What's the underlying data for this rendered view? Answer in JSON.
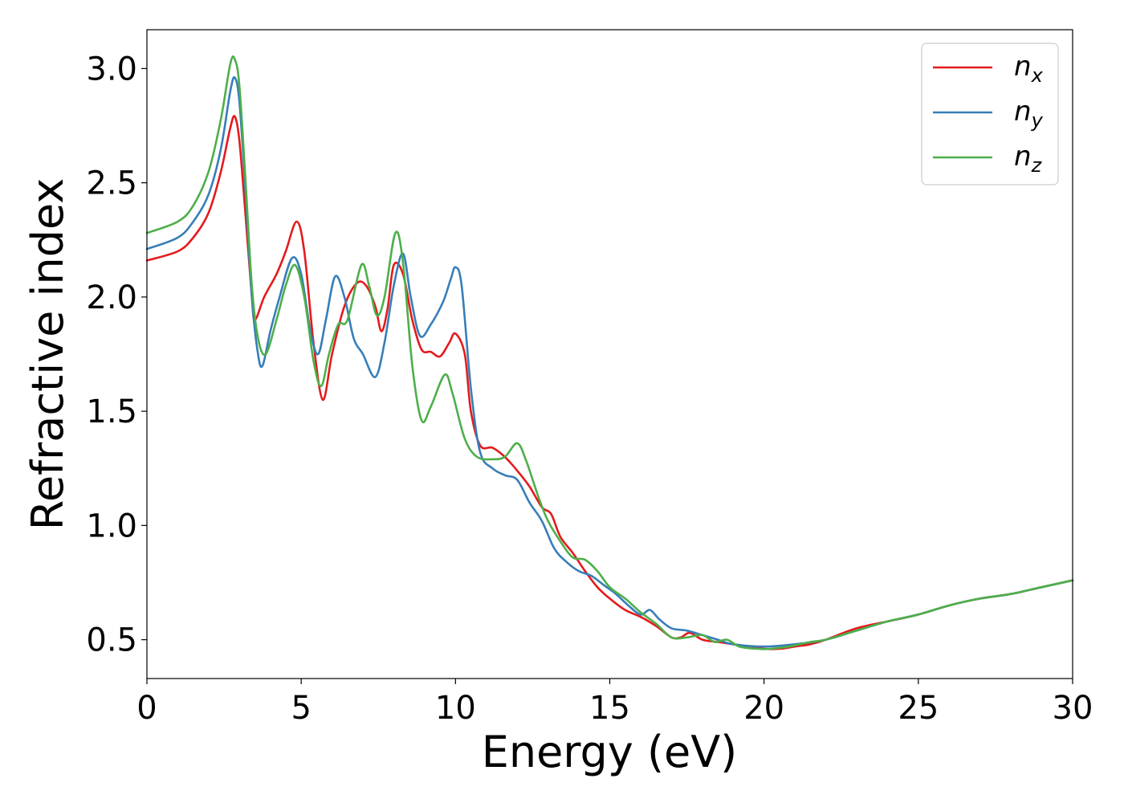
{
  "chart_data": {
    "type": "line",
    "xlabel": "Energy (eV)",
    "ylabel": "Refractive index",
    "xlim": [
      0,
      30
    ],
    "ylim": [
      0.33,
      3.17
    ],
    "xticks": [
      0,
      5,
      10,
      15,
      20,
      25,
      30
    ],
    "xtick_labels": [
      "0",
      "5",
      "10",
      "15",
      "20",
      "25",
      "30"
    ],
    "yticks": [
      0.5,
      1.0,
      1.5,
      2.0,
      2.5,
      3.0
    ],
    "ytick_labels": [
      "0.5",
      "1.0",
      "1.5",
      "2.0",
      "2.5",
      "3.0"
    ],
    "grid": false,
    "legend_position": "top-right",
    "series": [
      {
        "name": "n",
        "subscript": "x",
        "color": "#e41a1c",
        "points": [
          [
            0,
            2.16
          ],
          [
            1,
            2.2
          ],
          [
            1.5,
            2.26
          ],
          [
            2,
            2.37
          ],
          [
            2.4,
            2.55
          ],
          [
            2.7,
            2.74
          ],
          [
            2.85,
            2.79
          ],
          [
            3.0,
            2.68
          ],
          [
            3.2,
            2.35
          ],
          [
            3.4,
            2.0
          ],
          [
            3.5,
            1.9
          ],
          [
            3.8,
            2.0
          ],
          [
            4.2,
            2.1
          ],
          [
            4.5,
            2.2
          ],
          [
            4.85,
            2.33
          ],
          [
            5.1,
            2.2
          ],
          [
            5.4,
            1.8
          ],
          [
            5.7,
            1.55
          ],
          [
            6.0,
            1.75
          ],
          [
            6.4,
            1.96
          ],
          [
            6.8,
            2.06
          ],
          [
            7.1,
            2.05
          ],
          [
            7.4,
            1.96
          ],
          [
            7.6,
            1.85
          ],
          [
            7.8,
            1.95
          ],
          [
            8.0,
            2.14
          ],
          [
            8.3,
            2.1
          ],
          [
            8.6,
            1.9
          ],
          [
            8.9,
            1.77
          ],
          [
            9.2,
            1.76
          ],
          [
            9.5,
            1.74
          ],
          [
            9.8,
            1.8
          ],
          [
            10.0,
            1.84
          ],
          [
            10.3,
            1.75
          ],
          [
            10.5,
            1.5
          ],
          [
            10.8,
            1.35
          ],
          [
            11.2,
            1.34
          ],
          [
            11.6,
            1.3
          ],
          [
            12.0,
            1.24
          ],
          [
            12.4,
            1.17
          ],
          [
            12.8,
            1.08
          ],
          [
            13.1,
            1.05
          ],
          [
            13.4,
            0.95
          ],
          [
            13.8,
            0.88
          ],
          [
            14.2,
            0.8
          ],
          [
            14.6,
            0.73
          ],
          [
            15.0,
            0.68
          ],
          [
            15.5,
            0.63
          ],
          [
            16.0,
            0.6
          ],
          [
            16.5,
            0.56
          ],
          [
            17.0,
            0.51
          ],
          [
            17.3,
            0.51
          ],
          [
            17.6,
            0.53
          ],
          [
            18.0,
            0.5
          ],
          [
            18.5,
            0.49
          ],
          [
            19.0,
            0.48
          ],
          [
            19.5,
            0.47
          ],
          [
            20.0,
            0.46
          ],
          [
            20.5,
            0.46
          ],
          [
            21.0,
            0.47
          ],
          [
            21.5,
            0.48
          ],
          [
            22.0,
            0.5
          ],
          [
            23.0,
            0.55
          ],
          [
            24.0,
            0.58
          ],
          [
            25.0,
            0.61
          ],
          [
            26.0,
            0.65
          ],
          [
            27.0,
            0.68
          ],
          [
            28.0,
            0.7
          ],
          [
            29.0,
            0.73
          ],
          [
            30.0,
            0.76
          ]
        ]
      },
      {
        "name": "n",
        "subscript": "y",
        "color": "#377eb8",
        "points": [
          [
            0,
            2.21
          ],
          [
            1,
            2.26
          ],
          [
            1.5,
            2.33
          ],
          [
            2,
            2.45
          ],
          [
            2.4,
            2.65
          ],
          [
            2.7,
            2.9
          ],
          [
            2.85,
            2.96
          ],
          [
            3.0,
            2.85
          ],
          [
            3.2,
            2.45
          ],
          [
            3.4,
            2.0
          ],
          [
            3.6,
            1.75
          ],
          [
            3.75,
            1.7
          ],
          [
            4.0,
            1.85
          ],
          [
            4.3,
            2.0
          ],
          [
            4.7,
            2.17
          ],
          [
            5.0,
            2.1
          ],
          [
            5.3,
            1.85
          ],
          [
            5.55,
            1.75
          ],
          [
            5.8,
            1.9
          ],
          [
            6.1,
            2.09
          ],
          [
            6.4,
            2.0
          ],
          [
            6.7,
            1.82
          ],
          [
            7.0,
            1.75
          ],
          [
            7.4,
            1.65
          ],
          [
            7.7,
            1.8
          ],
          [
            8.0,
            2.05
          ],
          [
            8.3,
            2.19
          ],
          [
            8.55,
            2.0
          ],
          [
            8.85,
            1.83
          ],
          [
            9.2,
            1.88
          ],
          [
            9.6,
            1.98
          ],
          [
            9.85,
            2.08
          ],
          [
            10.0,
            2.13
          ],
          [
            10.2,
            2.05
          ],
          [
            10.5,
            1.6
          ],
          [
            10.8,
            1.32
          ],
          [
            11.2,
            1.25
          ],
          [
            11.6,
            1.22
          ],
          [
            12.0,
            1.2
          ],
          [
            12.4,
            1.1
          ],
          [
            12.8,
            1.02
          ],
          [
            13.2,
            0.9
          ],
          [
            13.6,
            0.84
          ],
          [
            14.0,
            0.8
          ],
          [
            14.4,
            0.78
          ],
          [
            14.8,
            0.74
          ],
          [
            15.2,
            0.7
          ],
          [
            15.6,
            0.65
          ],
          [
            16.0,
            0.61
          ],
          [
            16.3,
            0.63
          ],
          [
            16.6,
            0.59
          ],
          [
            17.0,
            0.55
          ],
          [
            17.5,
            0.54
          ],
          [
            18.0,
            0.52
          ],
          [
            18.5,
            0.5
          ],
          [
            19.0,
            0.48
          ],
          [
            20.0,
            0.47
          ],
          [
            21.0,
            0.48
          ],
          [
            22.0,
            0.5
          ],
          [
            23.0,
            0.54
          ],
          [
            24.0,
            0.58
          ],
          [
            25.0,
            0.61
          ],
          [
            26.0,
            0.65
          ],
          [
            27.0,
            0.68
          ],
          [
            28.0,
            0.7
          ],
          [
            29.0,
            0.73
          ],
          [
            30.0,
            0.76
          ]
        ]
      },
      {
        "name": "n",
        "subscript": "z",
        "color": "#4daf4a",
        "points": [
          [
            0,
            2.28
          ],
          [
            1,
            2.33
          ],
          [
            1.5,
            2.4
          ],
          [
            2,
            2.55
          ],
          [
            2.4,
            2.78
          ],
          [
            2.7,
            3.02
          ],
          [
            2.85,
            3.04
          ],
          [
            3.0,
            2.92
          ],
          [
            3.2,
            2.5
          ],
          [
            3.4,
            2.05
          ],
          [
            3.6,
            1.82
          ],
          [
            3.85,
            1.75
          ],
          [
            4.2,
            1.9
          ],
          [
            4.5,
            2.05
          ],
          [
            4.8,
            2.14
          ],
          [
            5.1,
            2.0
          ],
          [
            5.4,
            1.72
          ],
          [
            5.65,
            1.61
          ],
          [
            5.9,
            1.75
          ],
          [
            6.2,
            1.88
          ],
          [
            6.5,
            1.9
          ],
          [
            6.95,
            2.14
          ],
          [
            7.2,
            2.05
          ],
          [
            7.45,
            1.92
          ],
          [
            7.7,
            2.0
          ],
          [
            8.05,
            2.28
          ],
          [
            8.3,
            2.15
          ],
          [
            8.6,
            1.7
          ],
          [
            8.9,
            1.46
          ],
          [
            9.2,
            1.52
          ],
          [
            9.65,
            1.66
          ],
          [
            9.9,
            1.58
          ],
          [
            10.3,
            1.38
          ],
          [
            10.7,
            1.3
          ],
          [
            11.2,
            1.29
          ],
          [
            11.6,
            1.3
          ],
          [
            12.0,
            1.36
          ],
          [
            12.3,
            1.28
          ],
          [
            12.7,
            1.12
          ],
          [
            13.0,
            1.02
          ],
          [
            13.4,
            0.93
          ],
          [
            13.8,
            0.86
          ],
          [
            14.2,
            0.85
          ],
          [
            14.6,
            0.8
          ],
          [
            15.0,
            0.73
          ],
          [
            15.5,
            0.68
          ],
          [
            16.0,
            0.62
          ],
          [
            16.5,
            0.57
          ],
          [
            17.0,
            0.51
          ],
          [
            17.5,
            0.51
          ],
          [
            18.0,
            0.52
          ],
          [
            18.4,
            0.49
          ],
          [
            18.8,
            0.5
          ],
          [
            19.2,
            0.47
          ],
          [
            19.8,
            0.46
          ],
          [
            20.2,
            0.46
          ],
          [
            20.8,
            0.47
          ],
          [
            21.5,
            0.49
          ],
          [
            22.0,
            0.5
          ],
          [
            23.0,
            0.54
          ],
          [
            24.0,
            0.58
          ],
          [
            25.0,
            0.61
          ],
          [
            26.0,
            0.65
          ],
          [
            27.0,
            0.68
          ],
          [
            28.0,
            0.7
          ],
          [
            29.0,
            0.73
          ],
          [
            30.0,
            0.76
          ]
        ]
      }
    ]
  }
}
